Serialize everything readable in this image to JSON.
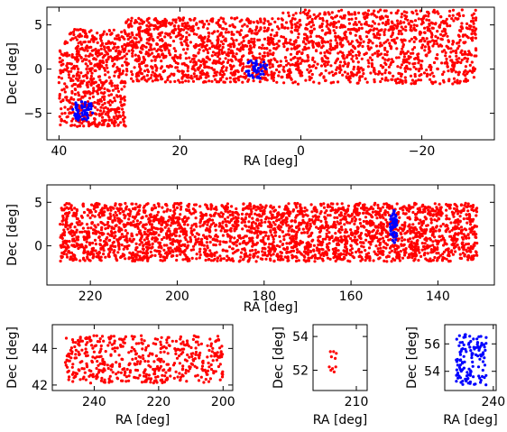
{
  "colors": {
    "field_a": "#ff0000",
    "field_b": "#0000ff"
  },
  "chart_data": [
    {
      "type": "scatter",
      "xlabel": "RA [deg]",
      "ylabel": "Dec [deg]",
      "xlim": [
        42,
        -32
      ],
      "ylim": [
        -8,
        7
      ],
      "xticks": [
        40,
        20,
        0,
        -20
      ],
      "xtick_labels": [
        "40",
        "20",
        "0",
        "−20"
      ],
      "yticks": [
        -5,
        0,
        5
      ],
      "ytick_labels": [
        "−5",
        "0",
        "5"
      ],
      "grid": false,
      "series": [
        {
          "color": "#ff0000",
          "description": "red points",
          "regions": [
            {
              "ra": [
                40,
                29
              ],
              "dec": [
                -6.5,
                4.5
              ],
              "n": 650
            },
            {
              "ra": [
                29,
                3
              ],
              "dec": [
                -1.5,
                5.8
              ],
              "n": 1000
            },
            {
              "ra": [
                3,
                -29
              ],
              "dec": [
                -1.7,
                6.7
              ],
              "n": 1100
            }
          ]
        },
        {
          "color": "#0000ff",
          "description": "blue points",
          "regions": [
            {
              "center": [
                36,
                -4.7
              ],
              "radius_ra": 1.8,
              "radius_dec": 1.3,
              "n": 60
            },
            {
              "center": [
                7.3,
                0.1
              ],
              "radius_ra": 1.8,
              "radius_dec": 1.2,
              "n": 45
            }
          ]
        }
      ]
    },
    {
      "type": "scatter",
      "xlabel": "RA [deg]",
      "ylabel": "Dec [deg]",
      "xlim": [
        230,
        127
      ],
      "ylim": [
        -4.5,
        7
      ],
      "xticks": [
        220,
        200,
        180,
        160,
        140
      ],
      "xtick_labels": [
        "220",
        "200",
        "180",
        "160",
        "140"
      ],
      "yticks": [
        0,
        5
      ],
      "ytick_labels": [
        "0",
        "5"
      ],
      "grid": false,
      "series": [
        {
          "color": "#ff0000",
          "description": "red points",
          "regions": [
            {
              "ra": [
                227,
                131
              ],
              "dec": [
                -1.8,
                4.9
              ],
              "n": 2800
            }
          ]
        },
        {
          "color": "#0000ff",
          "description": "blue points",
          "regions": [
            {
              "center": [
                150.2,
                2.2
              ],
              "radius_ra": 0.8,
              "radius_dec": 2.0,
              "n": 55
            }
          ]
        }
      ]
    },
    {
      "type": "scatter",
      "xlabel": "RA [deg]",
      "ylabel": "Dec [deg]",
      "xlim": [
        253,
        197
      ],
      "ylim": [
        41.7,
        45.3
      ],
      "xticks": [
        240,
        220,
        200
      ],
      "xtick_labels": [
        "240",
        "220",
        "200"
      ],
      "yticks": [
        42,
        44
      ],
      "ytick_labels": [
        "42",
        "44"
      ],
      "grid": false,
      "series": [
        {
          "color": "#ff0000",
          "description": "red points",
          "regions": [
            {
              "ra": [
                249,
                200
              ],
              "dec": [
                42.1,
                44.7
              ],
              "n": 480
            }
          ]
        }
      ]
    },
    {
      "type": "scatter",
      "xlabel": "RA [deg]",
      "ylabel": "Dec [deg]",
      "xlim": [
        202,
        212
      ],
      "ylim": [
        50.8,
        54.7
      ],
      "xticks": [
        210
      ],
      "xtick_labels": [
        "210"
      ],
      "yticks": [
        52,
        54
      ],
      "ytick_labels": [
        "52",
        "54"
      ],
      "grid": false,
      "series": [
        {
          "color": "#ff0000",
          "description": "red points",
          "points": [
            [
              205.2,
              53.1
            ],
            [
              205.8,
              53.1
            ],
            [
              206.3,
              53.0
            ],
            [
              205.4,
              52.8
            ],
            [
              206.1,
              52.7
            ],
            [
              205.0,
              52.2
            ],
            [
              205.6,
              52.1
            ],
            [
              206.2,
              52.2
            ],
            [
              205.9,
              51.9
            ],
            [
              205.3,
              52.0
            ]
          ]
        }
      ]
    },
    {
      "type": "scatter",
      "xlabel": "RA [deg]",
      "ylabel": "Dec [deg]",
      "xlim": [
        231.5,
        240.5
      ],
      "ylim": [
        52.6,
        57.4
      ],
      "xticks": [
        240
      ],
      "xtick_labels": [
        "240"
      ],
      "yticks": [
        54,
        56
      ],
      "ytick_labels": [
        "54",
        "56"
      ],
      "grid": false,
      "series": [
        {
          "color": "#0000ff",
          "description": "blue points",
          "regions": [
            {
              "ra": [
                233.5,
                238.8
              ],
              "dec": [
                52.9,
                56.7
              ],
              "n": 120
            }
          ]
        }
      ]
    }
  ]
}
